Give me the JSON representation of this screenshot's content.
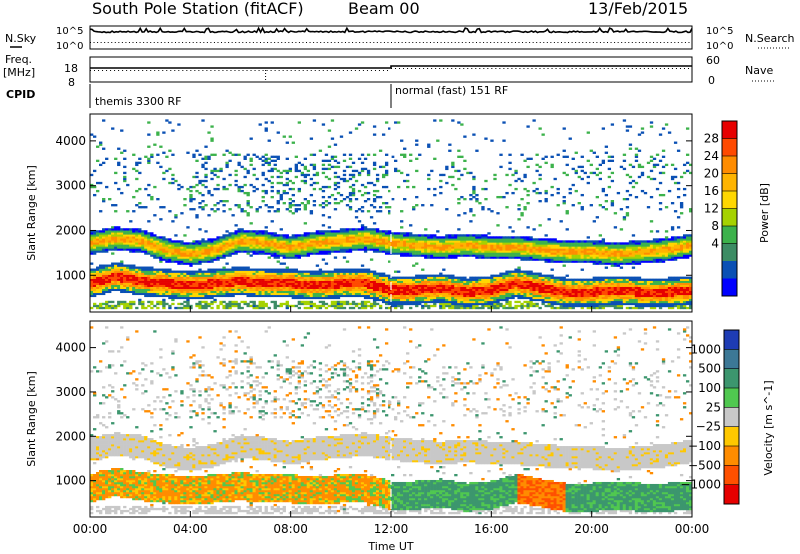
{
  "header": {
    "station": "South Pole Station (fitACF)",
    "beam": "Beam 00",
    "date": "13/Feb/2015"
  },
  "summary_panel": {
    "nsky_label": "N.Sky",
    "nsky_ticks": [
      "10^5",
      "10^0"
    ],
    "nsearch_label": "N.Search",
    "nsearch_ticks": [
      "10^5",
      "10^0"
    ],
    "freq_label_line1": "Freq.",
    "freq_label_line2": "[MHz]",
    "freq_ticks": [
      "18",
      "8"
    ],
    "nave_label": "Nave",
    "nave_ticks": [
      "60",
      "0"
    ],
    "cpid_label": "CPID",
    "cpid_modes": [
      {
        "label": "themis 3300 RF",
        "start_hour": 0
      },
      {
        "label": "normal (fast) 151 RF",
        "start_hour": 12
      }
    ]
  },
  "chart_data": [
    {
      "type": "heatmap",
      "title": "",
      "parameter": "Power",
      "colorbar_label": "Power [dB]",
      "colorbar_ticks": [
        "28",
        "24",
        "20",
        "16",
        "12",
        "8",
        "4"
      ],
      "colorbar_values": [
        28,
        24,
        20,
        16,
        12,
        8,
        4
      ],
      "colors": [
        "#e60000",
        "#ff4a00",
        "#ff8c00",
        "#ffb400",
        "#ffd700",
        "#a5d200",
        "#3cb24b",
        "#3c8c64",
        "#0a50b4",
        "#0000ff"
      ],
      "xlabel": "",
      "ylabel": "Slant Range [km]",
      "xlim_hours": [
        0,
        24
      ],
      "ylim_km": [
        180,
        4600
      ],
      "yticks": [
        "4000",
        "3000",
        "2000",
        "1000"
      ],
      "ytick_values": [
        4000,
        3000,
        2000,
        1000
      ],
      "band_upper_center_km": [
        [
          0,
          1700
        ],
        [
          1,
          1800
        ],
        [
          2,
          1750
        ],
        [
          3,
          1550
        ],
        [
          4,
          1450
        ],
        [
          5,
          1550
        ],
        [
          6,
          1750
        ],
        [
          7,
          1700
        ],
        [
          8,
          1600
        ],
        [
          9,
          1700
        ],
        [
          10,
          1750
        ],
        [
          11,
          1800
        ],
        [
          12,
          1700
        ],
        [
          13,
          1650
        ],
        [
          14,
          1600
        ],
        [
          15,
          1650
        ],
        [
          16,
          1600
        ],
        [
          17,
          1600
        ],
        [
          18,
          1550
        ],
        [
          19,
          1500
        ],
        [
          20,
          1500
        ],
        [
          21,
          1450
        ],
        [
          22,
          1500
        ],
        [
          23,
          1550
        ],
        [
          24,
          1650
        ]
      ],
      "band_lower_center_km": [
        [
          0,
          800
        ],
        [
          1,
          950
        ],
        [
          2,
          850
        ],
        [
          3,
          800
        ],
        [
          4,
          750
        ],
        [
          5,
          800
        ],
        [
          6,
          850
        ],
        [
          7,
          800
        ],
        [
          8,
          800
        ],
        [
          9,
          750
        ],
        [
          10,
          800
        ],
        [
          11,
          800
        ],
        [
          12,
          650
        ],
        [
          13,
          650
        ],
        [
          14,
          700
        ],
        [
          15,
          600
        ],
        [
          16,
          650
        ],
        [
          17,
          800
        ],
        [
          18,
          700
        ],
        [
          19,
          600
        ],
        [
          20,
          600
        ],
        [
          21,
          650
        ],
        [
          22,
          600
        ],
        [
          23,
          600
        ],
        [
          24,
          650
        ]
      ]
    },
    {
      "type": "heatmap",
      "title": "",
      "parameter": "Velocity",
      "colorbar_label": "Velocity [m s^-1]",
      "colorbar_ticks": [
        "1000",
        "500",
        "100",
        "25",
        "−25",
        "−100",
        "−500",
        "−1000"
      ],
      "colorbar_values": [
        1000,
        500,
        100,
        25,
        -25,
        -100,
        -500,
        -1000
      ],
      "colors": [
        "#1e3cb4",
        "#3c7896",
        "#3c966e",
        "#50c850",
        "#c8c8c8",
        "#ffc800",
        "#ff8c00",
        "#ff5000",
        "#e60000"
      ],
      "xlabel": "Time UT",
      "ylabel": "Slant Range [km]",
      "xlim_hours": [
        0,
        24
      ],
      "ylim_km": [
        180,
        4600
      ],
      "xticks": [
        "00:00",
        "04:00",
        "08:00",
        "12:00",
        "16:00",
        "20:00",
        "00:00"
      ],
      "xtick_values": [
        0,
        4,
        8,
        12,
        16,
        20,
        24
      ],
      "yticks": [
        "4000",
        "3000",
        "2000",
        "1000"
      ],
      "ytick_values": [
        4000,
        3000,
        2000,
        1000
      ]
    }
  ]
}
